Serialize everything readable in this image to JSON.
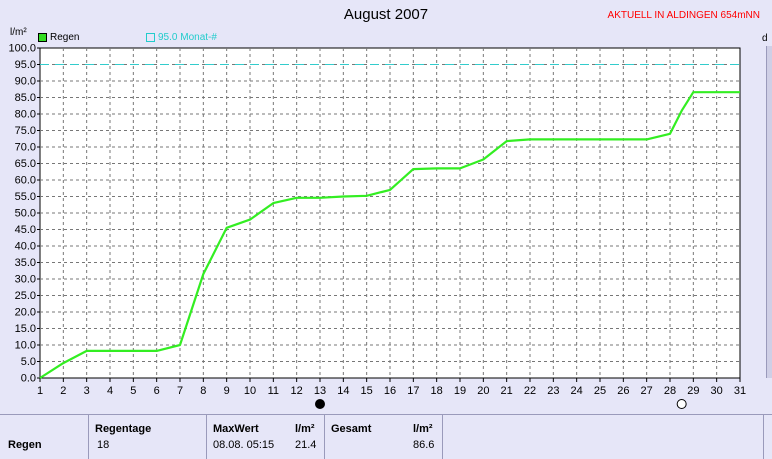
{
  "title": "August 2007",
  "station": "AKTUELL IN ALDINGEN 654mNN",
  "right_edge_label": "d",
  "legend": {
    "rain": "Regen",
    "reference": "95.0 Monat-#"
  },
  "colors": {
    "rain_line": "#33ee22",
    "reference_line": "#33cccc",
    "grid": "#777777",
    "station": "#ff0000"
  },
  "chart_data": {
    "type": "line",
    "title": "August 2007",
    "ylabel": "l/m²",
    "xlabel": "",
    "xlim": [
      1,
      31
    ],
    "ylim": [
      0,
      100
    ],
    "x_ticks": [
      1,
      2,
      3,
      4,
      5,
      6,
      7,
      8,
      9,
      10,
      11,
      12,
      13,
      14,
      15,
      16,
      17,
      18,
      19,
      20,
      21,
      22,
      23,
      24,
      25,
      26,
      27,
      28,
      29,
      30,
      31
    ],
    "y_ticks": [
      0,
      5,
      10,
      15,
      20,
      25,
      30,
      35,
      40,
      45,
      50,
      55,
      60,
      65,
      70,
      75,
      80,
      85,
      90,
      95,
      100
    ],
    "grid": true,
    "legend_position": "top-left",
    "reference_line": {
      "name": "95.0 Monat-#",
      "value": 95
    },
    "series": [
      {
        "name": "Regen",
        "x": [
          1,
          2,
          3,
          4,
          5,
          6,
          7,
          8,
          9,
          10,
          11,
          12,
          13,
          14,
          15,
          16,
          17,
          18,
          19,
          20,
          21,
          22,
          23,
          24,
          25,
          26,
          27,
          28,
          28.5,
          29,
          30,
          31
        ],
        "values": [
          0,
          4.5,
          8.2,
          8.2,
          8.2,
          8.2,
          10,
          31.5,
          45.5,
          48,
          53,
          54.6,
          54.6,
          55,
          55.2,
          57,
          63.3,
          63.5,
          63.5,
          66.2,
          71.8,
          72.3,
          72.3,
          72.3,
          72.3,
          72.3,
          72.3,
          74,
          81,
          86.6,
          86.6,
          86.6
        ]
      }
    ],
    "markers": [
      {
        "name": "new-moon",
        "x": 13
      },
      {
        "name": "full-moon",
        "x": 28.5
      }
    ]
  },
  "stats": {
    "row_label": "Regen",
    "regentage_label": "Regentage",
    "regentage_value": "18",
    "maxwert_label": "MaxWert",
    "maxwert_unit": "l/m²",
    "maxwert_time": "08.08.  05:15",
    "maxwert_value": "21.4",
    "gesamt_label": "Gesamt",
    "gesamt_unit": "l/m²",
    "gesamt_value": "86.6"
  }
}
